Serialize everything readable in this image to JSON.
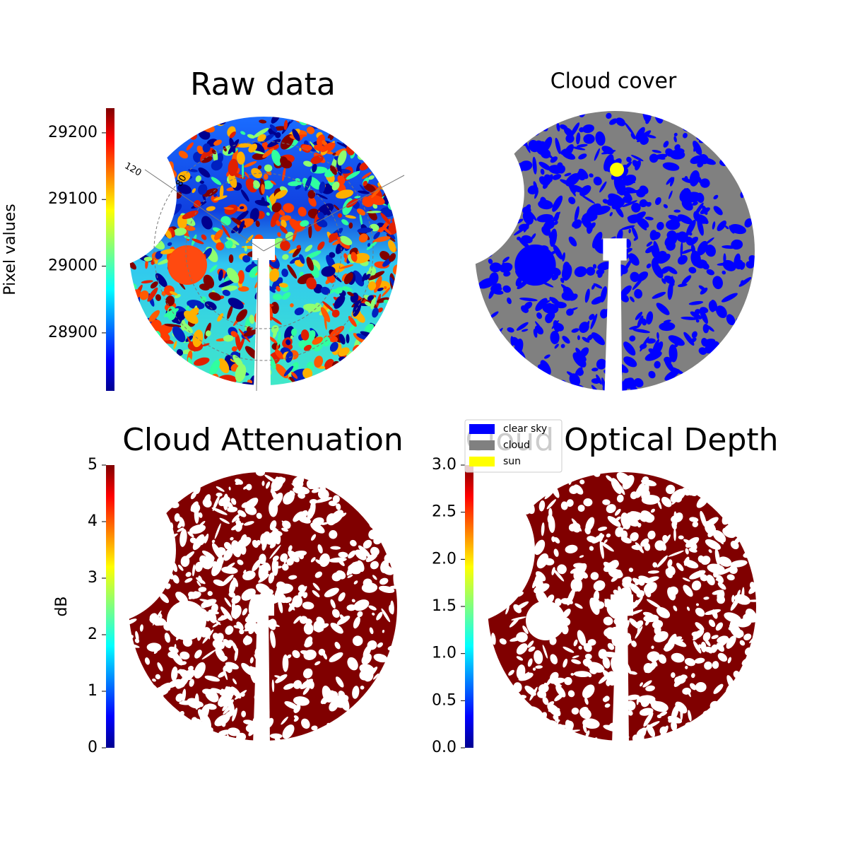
{
  "chart_data": [
    {
      "type": "image",
      "title": "Raw data",
      "colormap": "jet",
      "ylabel": "Pixel values",
      "ylim": [
        28813,
        29237
      ],
      "yticks": [
        28900,
        29000,
        29100,
        29200
      ],
      "annotations": [
        "120",
        "80"
      ]
    },
    {
      "type": "mask",
      "title": "Cloud cover",
      "series": [
        {
          "name": "clear sky",
          "color": "#0000ff"
        },
        {
          "name": "cloud",
          "color": "#808080"
        },
        {
          "name": "sun",
          "color": "#ffff00"
        }
      ]
    },
    {
      "type": "image",
      "title": "Cloud Attenuation",
      "colormap": "jet",
      "ylabel": "dB",
      "ylim": [
        0,
        5
      ],
      "yticks": [
        0,
        1,
        2,
        3,
        4,
        5
      ]
    },
    {
      "type": "image",
      "title": "Cloud Optical Depth",
      "colormap": "jet",
      "ylim": [
        0,
        3
      ],
      "yticks": [
        {
          "value": 0,
          "label": "0.0"
        },
        0.5,
        {
          "value": 1,
          "label": "1.0"
        },
        1.5,
        {
          "value": 2,
          "label": "2.0"
        },
        2.5,
        {
          "value": 3,
          "label": "3.0"
        }
      ]
    }
  ]
}
